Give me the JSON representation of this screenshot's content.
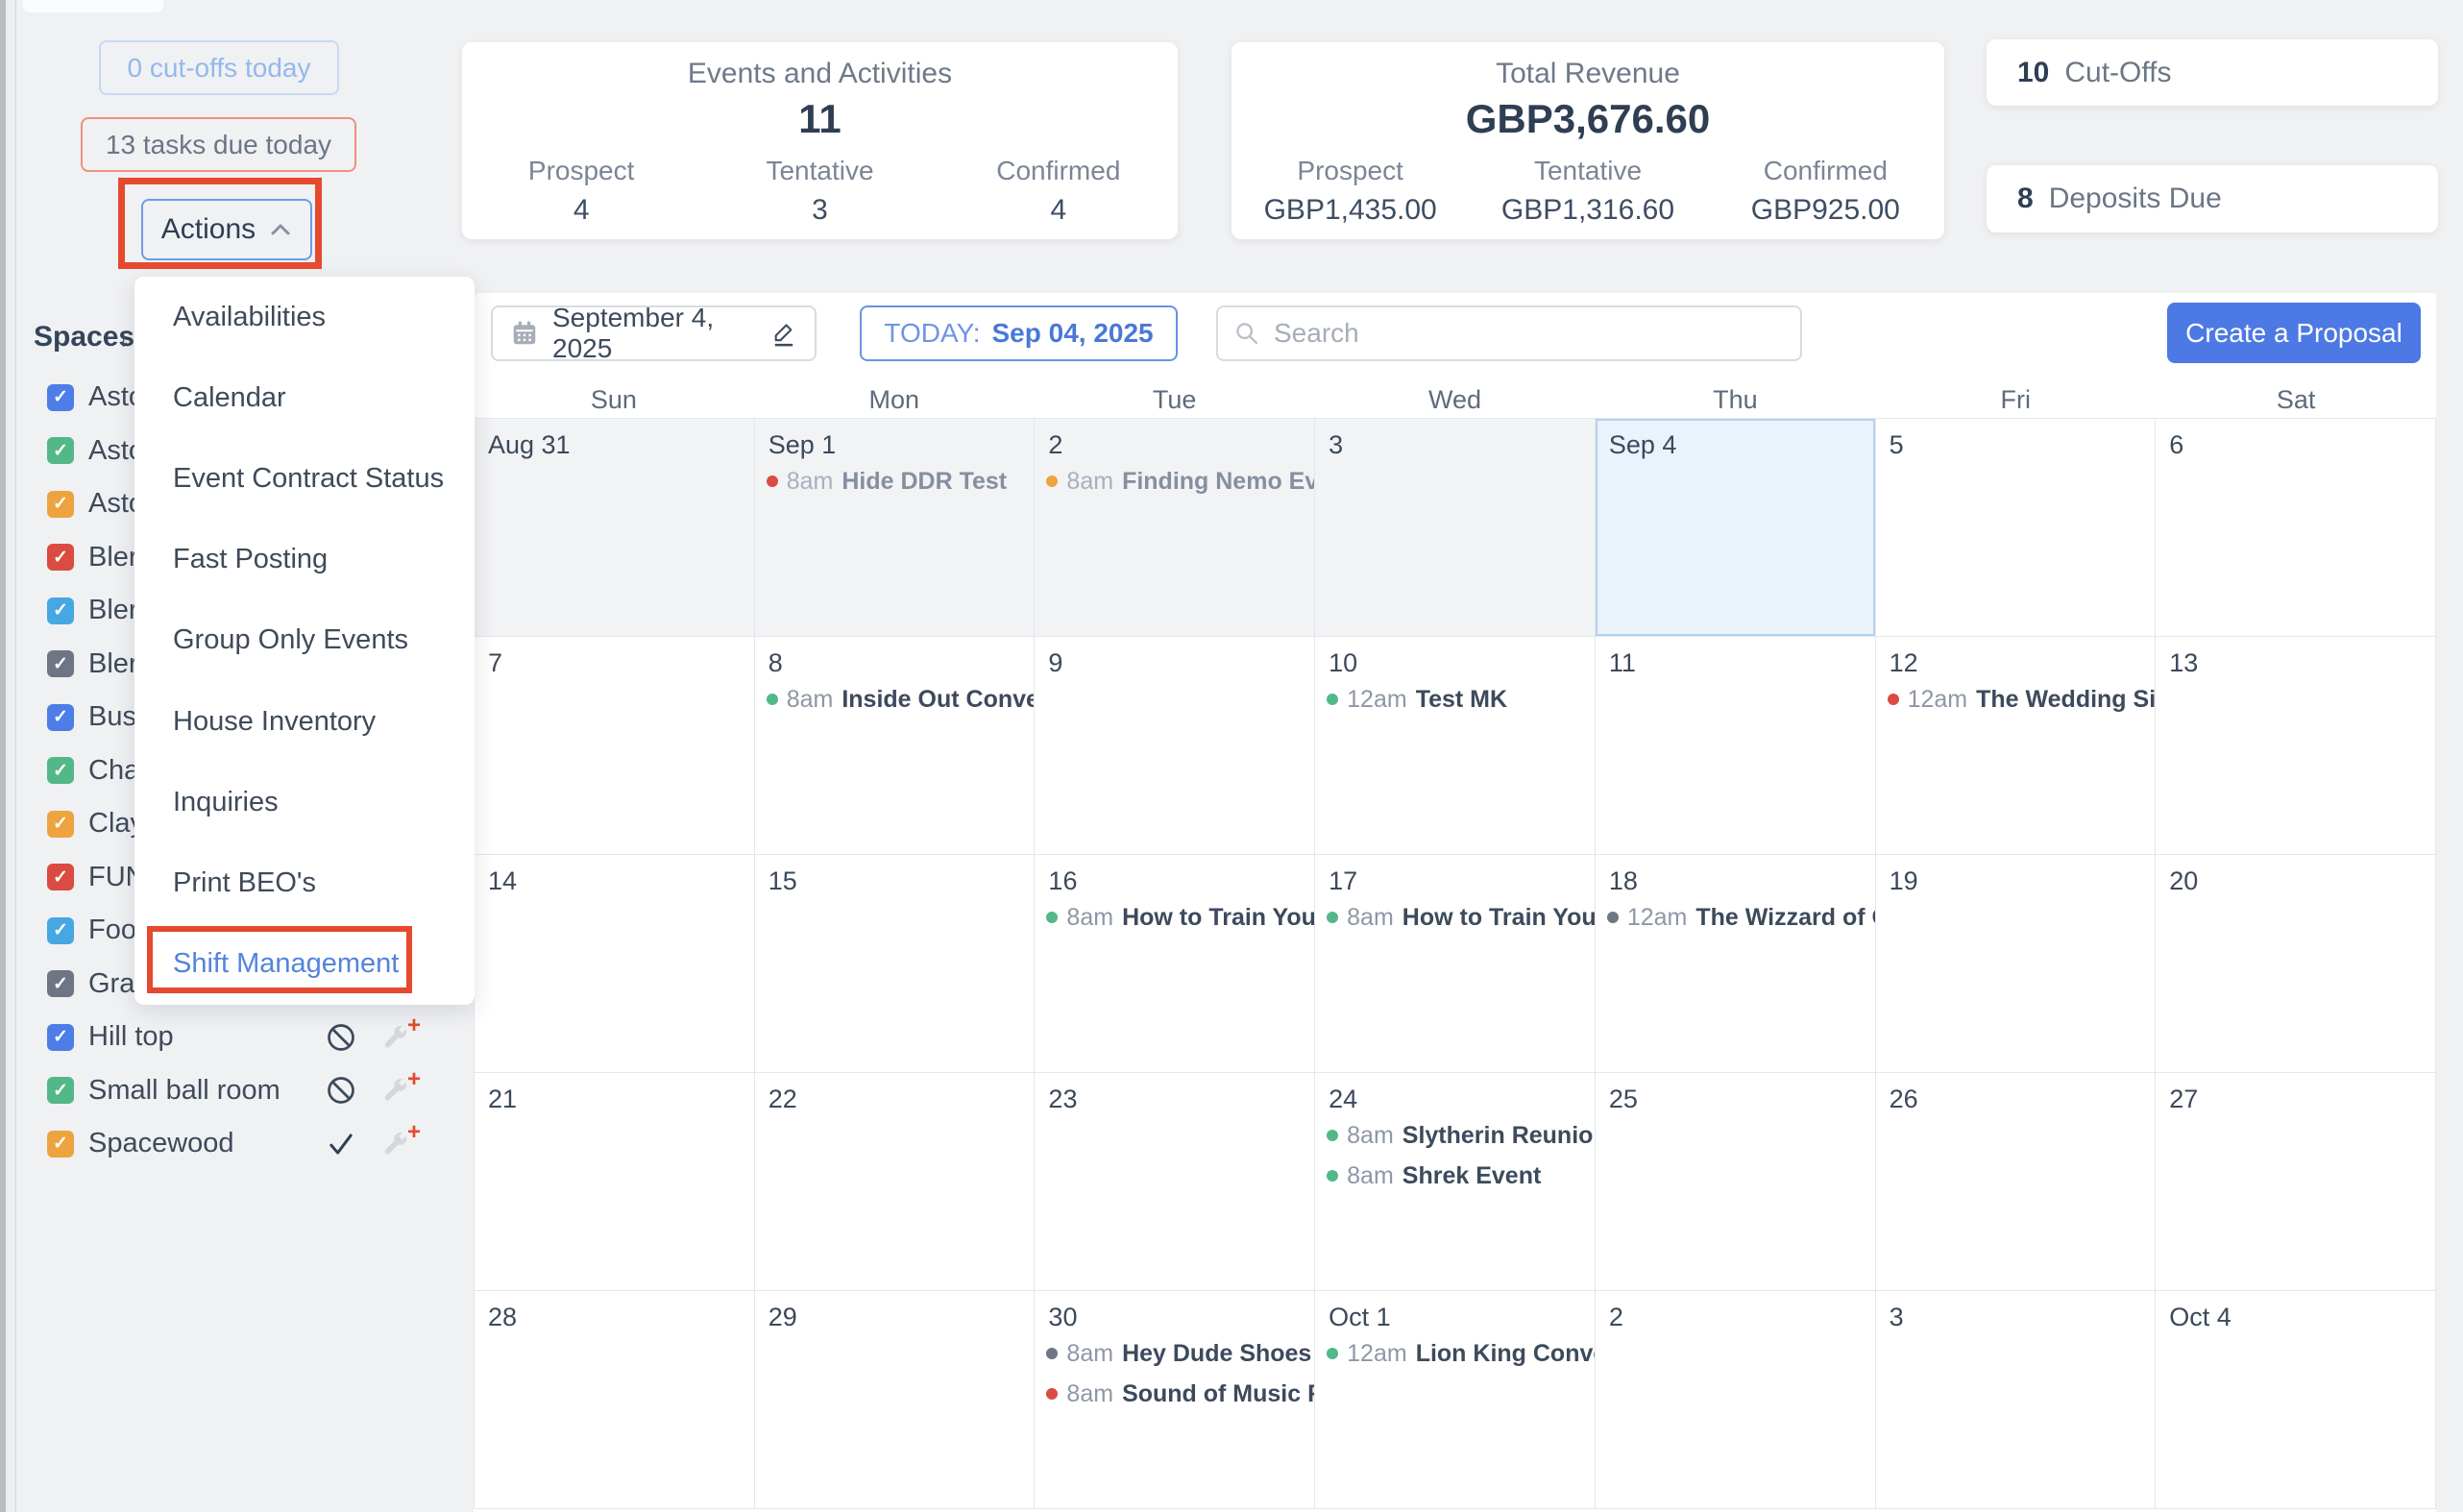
{
  "colors": {
    "annotation_red": "#e5492e",
    "accent_blue": "#4d79e4",
    "link_blue": "#5384dc",
    "dot_palette": {
      "green": "#52b888",
      "red": "#da4b42",
      "orange": "#eda43f",
      "gray": "#6e7683"
    }
  },
  "left_toolbar": {
    "cutoffs_button": "0 cut-offs today",
    "tasks_button": "13 tasks due today",
    "actions_button": "Actions"
  },
  "actions_menu": {
    "items": [
      "Availabilities",
      "Calendar",
      "Event Contract Status",
      "Fast Posting",
      "Group Only Events",
      "House Inventory",
      "Inquiries",
      "Print BEO's",
      "Shift Management"
    ],
    "highlighted_item": "Shift Management"
  },
  "cards": {
    "events": {
      "title": "Events and Activities",
      "total": "11",
      "columns": [
        {
          "label": "Prospect",
          "value": "4"
        },
        {
          "label": "Tentative",
          "value": "3"
        },
        {
          "label": "Confirmed",
          "value": "4"
        }
      ]
    },
    "revenue": {
      "title": "Total Revenue",
      "total": "GBP3,676.60",
      "columns": [
        {
          "label": "Prospect",
          "value": "GBP1,435.00"
        },
        {
          "label": "Tentative",
          "value": "GBP1,316.60"
        },
        {
          "label": "Confirmed",
          "value": "GBP925.00"
        }
      ]
    },
    "cutoffs": {
      "count": "10",
      "label": "Cut-Offs"
    },
    "deposits": {
      "count": "8",
      "label": "Deposits Due"
    }
  },
  "sidebar": {
    "title": "Spaces",
    "spaces": [
      {
        "label": "Asto",
        "color": "#4d7ee8",
        "status": null
      },
      {
        "label": "Asto",
        "color": "#52b888",
        "status": null
      },
      {
        "label": "Asto",
        "color": "#eda43f",
        "status": null
      },
      {
        "label": "Bler",
        "color": "#da4b42",
        "status": null
      },
      {
        "label": "Bler",
        "color": "#47a7e3",
        "status": null
      },
      {
        "label": "Bler",
        "color": "#6e7683",
        "status": null
      },
      {
        "label": "Buse",
        "color": "#4d7ee8",
        "status": null
      },
      {
        "label": "Cha",
        "color": "#52b888",
        "status": null
      },
      {
        "label": "Clay",
        "color": "#eda43f",
        "status": null
      },
      {
        "label": "FUN",
        "color": "#da4b42",
        "status": null
      },
      {
        "label": "Food",
        "color": "#47a7e3",
        "status": null
      },
      {
        "label": "Gra",
        "color": "#6e7683",
        "status": null
      },
      {
        "label": "Hill top",
        "color": "#4d7ee8",
        "status": "blocked"
      },
      {
        "label": "Small ball room",
        "color": "#52b888",
        "status": "blocked"
      },
      {
        "label": "Spacewood",
        "color": "#eda43f",
        "status": "check"
      }
    ]
  },
  "calendar_toolbar": {
    "date_label": "September 4, 2025",
    "today_label": "TODAY:",
    "today_date": "Sep 04, 2025",
    "search_placeholder": "Search",
    "create_button": "Create a Proposal"
  },
  "calendar": {
    "day_headers": [
      "Sun",
      "Mon",
      "Tue",
      "Wed",
      "Thu",
      "Fri",
      "Sat"
    ],
    "weeks": [
      {
        "cells": [
          {
            "date": "Aug 31",
            "state": "past",
            "events": []
          },
          {
            "date": "Sep 1",
            "state": "past",
            "events": [
              {
                "time": "8am",
                "title": "Hide DDR Test",
                "color": "red"
              }
            ]
          },
          {
            "date": "2",
            "state": "past",
            "events": [
              {
                "time": "8am",
                "title": "Finding Nemo Even",
                "color": "orange"
              }
            ]
          },
          {
            "date": "3",
            "state": "past",
            "events": []
          },
          {
            "date": "Sep 4",
            "state": "today",
            "events": []
          },
          {
            "date": "5",
            "state": "future",
            "events": []
          },
          {
            "date": "6",
            "state": "future",
            "events": []
          }
        ]
      },
      {
        "cells": [
          {
            "date": "7",
            "state": "future",
            "events": []
          },
          {
            "date": "8",
            "state": "future",
            "events": [
              {
                "time": "8am",
                "title": "Inside Out Convent",
                "color": "green"
              }
            ]
          },
          {
            "date": "9",
            "state": "future",
            "events": []
          },
          {
            "date": "10",
            "state": "future",
            "events": [
              {
                "time": "12am",
                "title": "Test MK",
                "color": "green"
              }
            ]
          },
          {
            "date": "11",
            "state": "future",
            "events": []
          },
          {
            "date": "12",
            "state": "future",
            "events": [
              {
                "time": "12am",
                "title": "The Wedding Sing",
                "color": "red"
              }
            ]
          },
          {
            "date": "13",
            "state": "future",
            "events": []
          }
        ]
      },
      {
        "cells": [
          {
            "date": "14",
            "state": "future",
            "events": []
          },
          {
            "date": "15",
            "state": "future",
            "events": []
          },
          {
            "date": "16",
            "state": "future",
            "events": [
              {
                "time": "8am",
                "title": "How to Train Your D",
                "color": "green"
              }
            ]
          },
          {
            "date": "17",
            "state": "future",
            "events": [
              {
                "time": "8am",
                "title": "How to Train Your D",
                "color": "green"
              }
            ]
          },
          {
            "date": "18",
            "state": "future",
            "events": [
              {
                "time": "12am",
                "title": "The Wizzard of OZ",
                "color": "gray"
              }
            ]
          },
          {
            "date": "19",
            "state": "future",
            "events": []
          },
          {
            "date": "20",
            "state": "future",
            "events": []
          }
        ]
      },
      {
        "cells": [
          {
            "date": "21",
            "state": "future",
            "events": []
          },
          {
            "date": "22",
            "state": "future",
            "events": []
          },
          {
            "date": "23",
            "state": "future",
            "events": []
          },
          {
            "date": "24",
            "state": "future",
            "events": [
              {
                "time": "8am",
                "title": "Slytherin Reunion",
                "color": "green"
              },
              {
                "time": "8am",
                "title": "Shrek Event",
                "color": "green"
              }
            ]
          },
          {
            "date": "25",
            "state": "future",
            "events": []
          },
          {
            "date": "26",
            "state": "future",
            "events": []
          },
          {
            "date": "27",
            "state": "future",
            "events": []
          }
        ]
      },
      {
        "cells": [
          {
            "date": "28",
            "state": "future",
            "events": []
          },
          {
            "date": "29",
            "state": "future",
            "events": []
          },
          {
            "date": "30",
            "state": "future",
            "events": [
              {
                "time": "8am",
                "title": "Hey Dude Shoes Co",
                "color": "gray"
              },
              {
                "time": "8am",
                "title": "Sound of Music Reu",
                "color": "red"
              }
            ]
          },
          {
            "date": "Oct 1",
            "state": "future",
            "events": [
              {
                "time": "12am",
                "title": "Lion King Convent",
                "color": "green"
              }
            ]
          },
          {
            "date": "2",
            "state": "future",
            "events": []
          },
          {
            "date": "3",
            "state": "future",
            "events": []
          },
          {
            "date": "Oct 4",
            "state": "future",
            "events": []
          }
        ]
      }
    ]
  }
}
